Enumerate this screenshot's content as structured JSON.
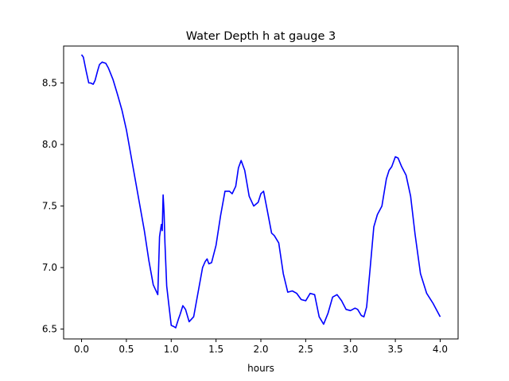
{
  "chart_data": {
    "type": "line",
    "title": "Water Depth h at gauge 3",
    "xlabel": "hours",
    "ylabel": "",
    "xlim": [
      -0.2,
      4.2
    ],
    "ylim": [
      6.42,
      8.8
    ],
    "x_ticks": [
      0.0,
      0.5,
      1.0,
      1.5,
      2.0,
      2.5,
      3.0,
      3.5,
      4.0
    ],
    "x_tick_labels": [
      "0.0",
      "0.5",
      "1.0",
      "1.5",
      "2.0",
      "2.5",
      "3.0",
      "3.5",
      "4.0"
    ],
    "y_ticks": [
      6.5,
      7.0,
      7.5,
      8.0,
      8.5
    ],
    "y_tick_labels": [
      "6.5",
      "7.0",
      "7.5",
      "8.0",
      "8.5"
    ],
    "grid": false,
    "legend": "none",
    "series": [
      {
        "color": "#0000ff",
        "x": [
          0.0,
          0.02,
          0.05,
          0.08,
          0.1,
          0.13,
          0.15,
          0.18,
          0.2,
          0.23,
          0.27,
          0.3,
          0.35,
          0.4,
          0.45,
          0.5,
          0.6,
          0.7,
          0.75,
          0.8,
          0.85,
          0.87,
          0.88,
          0.89,
          0.9,
          0.91,
          0.92,
          0.93,
          0.95,
          0.97,
          1.0,
          1.03,
          1.05,
          1.08,
          1.1,
          1.13,
          1.16,
          1.2,
          1.25,
          1.3,
          1.35,
          1.38,
          1.4,
          1.42,
          1.45,
          1.5,
          1.55,
          1.6,
          1.65,
          1.68,
          1.72,
          1.75,
          1.78,
          1.82,
          1.87,
          1.92,
          1.97,
          2.0,
          2.03,
          2.07,
          2.12,
          2.15,
          2.2,
          2.25,
          2.3,
          2.35,
          2.4,
          2.45,
          2.5,
          2.55,
          2.6,
          2.65,
          2.7,
          2.75,
          2.8,
          2.85,
          2.9,
          2.95,
          3.0,
          3.05,
          3.08,
          3.12,
          3.15,
          3.18,
          3.22,
          3.26,
          3.3,
          3.35,
          3.4,
          3.43,
          3.46,
          3.5,
          3.53,
          3.57,
          3.62,
          3.67,
          3.72,
          3.78,
          3.85,
          3.92,
          4.0
        ],
        "values": [
          8.73,
          8.71,
          8.6,
          8.5,
          8.5,
          8.49,
          8.52,
          8.6,
          8.65,
          8.67,
          8.66,
          8.62,
          8.53,
          8.41,
          8.28,
          8.12,
          7.71,
          7.3,
          7.06,
          6.86,
          6.78,
          7.25,
          7.3,
          7.35,
          7.3,
          7.59,
          7.45,
          7.2,
          6.85,
          6.72,
          6.53,
          6.52,
          6.51,
          6.58,
          6.62,
          6.69,
          6.66,
          6.56,
          6.6,
          6.8,
          7.0,
          7.05,
          7.07,
          7.03,
          7.04,
          7.18,
          7.42,
          7.62,
          7.62,
          7.6,
          7.66,
          7.81,
          7.87,
          7.79,
          7.58,
          7.5,
          7.53,
          7.6,
          7.62,
          7.47,
          7.28,
          7.26,
          7.2,
          6.95,
          6.8,
          6.81,
          6.79,
          6.74,
          6.73,
          6.79,
          6.78,
          6.6,
          6.54,
          6.63,
          6.76,
          6.78,
          6.73,
          6.66,
          6.65,
          6.67,
          6.66,
          6.61,
          6.6,
          6.68,
          7.0,
          7.33,
          7.43,
          7.5,
          7.72,
          7.79,
          7.82,
          7.9,
          7.89,
          7.82,
          7.75,
          7.58,
          7.27,
          6.95,
          6.79,
          6.71,
          6.6
        ]
      }
    ]
  }
}
